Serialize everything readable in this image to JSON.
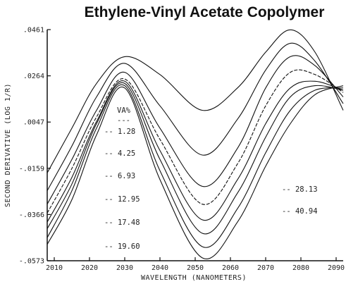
{
  "chart_data": {
    "type": "line",
    "title": "Ethylene-Vinyl Acetate Copolymer",
    "xlabel": "WAVELENGTH (NANOMETERS)",
    "ylabel": "SECOND DERIVATIVE (LOG 1/R)",
    "xlim": [
      2008,
      2092
    ],
    "ylim": [
      -0.0573,
      0.0461
    ],
    "x_ticks": [
      "2010",
      "2020",
      "2030",
      "2040",
      "2050",
      "2060",
      "2070",
      "2080",
      "2090"
    ],
    "y_ticks": [
      ".0461",
      ".0264",
      ".0047",
      "-.0159",
      "-.0366",
      "-.0573"
    ],
    "legend_header": "VA%",
    "legend_separator": "---",
    "series": [
      {
        "label": "1.28",
        "x": [
          2008,
          2015,
          2022,
          2030,
          2040,
          2052,
          2062,
          2070,
          2077,
          2084,
          2092
        ],
        "y": [
          -0.018,
          0.002,
          0.022,
          0.034,
          0.026,
          0.01,
          0.02,
          0.036,
          0.046,
          0.036,
          0.01
        ]
      },
      {
        "label": "4.25",
        "x": [
          2008,
          2015,
          2022,
          2030,
          2040,
          2052,
          2062,
          2070,
          2077,
          2084,
          2092
        ],
        "y": [
          -0.026,
          -0.006,
          0.016,
          0.031,
          0.012,
          -0.01,
          0.006,
          0.028,
          0.04,
          0.032,
          0.013
        ]
      },
      {
        "label": "6.93",
        "x": [
          2008,
          2015,
          2022,
          2030,
          2040,
          2052,
          2062,
          2070,
          2077,
          2084,
          2092
        ],
        "y": [
          -0.032,
          -0.012,
          0.01,
          0.027,
          0.002,
          -0.024,
          -0.007,
          0.02,
          0.034,
          0.03,
          0.016
        ]
      },
      {
        "label": "12.95",
        "x": [
          2008,
          2015,
          2022,
          2030,
          2040,
          2052,
          2062,
          2070,
          2077,
          2084,
          2092
        ],
        "y": [
          -0.036,
          -0.016,
          0.007,
          0.024,
          -0.003,
          -0.032,
          -0.014,
          0.012,
          0.027,
          0.026,
          0.018
        ]
      },
      {
        "label": "17.48",
        "x": [
          2008,
          2015,
          2022,
          2030,
          2040,
          2052,
          2062,
          2070,
          2077,
          2084,
          2092
        ],
        "y": [
          -0.04,
          -0.02,
          0.005,
          0.023,
          -0.008,
          -0.039,
          -0.021,
          0.004,
          0.02,
          0.023,
          0.019
        ]
      },
      {
        "label": "19.60",
        "x": [
          2008,
          2015,
          2022,
          2030,
          2040,
          2052,
          2062,
          2070,
          2077,
          2084,
          2092
        ],
        "y": [
          -0.043,
          -0.023,
          0.004,
          0.022,
          -0.012,
          -0.045,
          -0.027,
          -0.002,
          0.016,
          0.021,
          0.019
        ]
      },
      {
        "label": "28.13",
        "x": [
          2008,
          2015,
          2022,
          2030,
          2040,
          2052,
          2062,
          2070,
          2077,
          2084,
          2092
        ],
        "y": [
          -0.047,
          -0.026,
          0.002,
          0.021,
          -0.017,
          -0.051,
          -0.034,
          -0.009,
          0.01,
          0.019,
          0.02
        ]
      },
      {
        "label": "40.94",
        "x": [
          2008,
          2015,
          2022,
          2030,
          2040,
          2052,
          2062,
          2070,
          2077,
          2084,
          2092
        ],
        "y": [
          -0.05,
          -0.03,
          -0.001,
          0.02,
          -0.021,
          -0.056,
          -0.04,
          -0.015,
          0.004,
          0.017,
          0.021
        ]
      }
    ]
  }
}
